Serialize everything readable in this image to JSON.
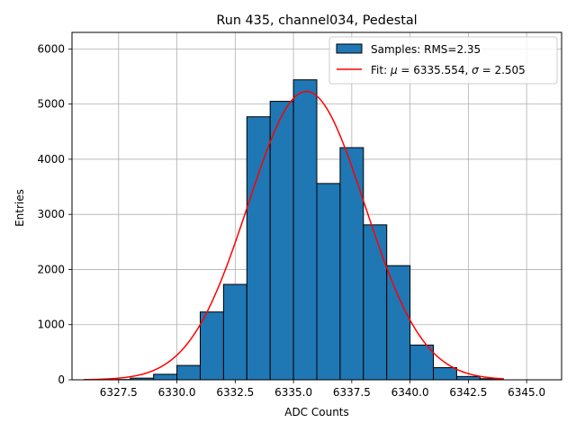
{
  "chart_data": {
    "type": "bar",
    "title": "Run 435, channel034, Pedestal",
    "xlabel": "ADC Counts",
    "ylabel": "Entries",
    "xlim": [
      6325.5,
      6346.5
    ],
    "ylim": [
      0,
      6300
    ],
    "grid": true,
    "xticks": [
      6327.5,
      6330.0,
      6332.5,
      6335.0,
      6337.5,
      6340.0,
      6342.5,
      6345.0
    ],
    "xtick_labels": [
      "6327.5",
      "6330.0",
      "6332.5",
      "6335.0",
      "6337.5",
      "6340.0",
      "6342.5",
      "6345.0"
    ],
    "yticks": [
      0,
      1000,
      2000,
      3000,
      4000,
      5000,
      6000
    ],
    "ytick_labels": [
      "0",
      "1000",
      "2000",
      "3000",
      "4000",
      "5000",
      "6000"
    ],
    "bar_color": "#1f77b4",
    "fit_color": "#ff0000",
    "bins": [
      {
        "start": 6327.0,
        "end": 6328.0,
        "value": 5
      },
      {
        "start": 6328.0,
        "end": 6329.0,
        "value": 30
      },
      {
        "start": 6329.0,
        "end": 6330.0,
        "value": 100
      },
      {
        "start": 6330.0,
        "end": 6331.0,
        "value": 260
      },
      {
        "start": 6331.0,
        "end": 6332.0,
        "value": 1230
      },
      {
        "start": 6332.0,
        "end": 6333.0,
        "value": 1730
      },
      {
        "start": 6333.0,
        "end": 6334.0,
        "value": 4770
      },
      {
        "start": 6334.0,
        "end": 6335.0,
        "value": 5050
      },
      {
        "start": 6335.0,
        "end": 6336.0,
        "value": 5440
      },
      {
        "start": 6336.0,
        "end": 6337.0,
        "value": 3560
      },
      {
        "start": 6337.0,
        "end": 6338.0,
        "value": 4210
      },
      {
        "start": 6338.0,
        "end": 6339.0,
        "value": 2810
      },
      {
        "start": 6339.0,
        "end": 6340.0,
        "value": 2070
      },
      {
        "start": 6340.0,
        "end": 6341.0,
        "value": 630
      },
      {
        "start": 6341.0,
        "end": 6342.0,
        "value": 220
      },
      {
        "start": 6342.0,
        "end": 6343.0,
        "value": 60
      },
      {
        "start": 6343.0,
        "end": 6344.0,
        "value": 20
      }
    ],
    "fit": {
      "mu": 6335.554,
      "sigma": 2.505,
      "amplitude": 5230,
      "x_range": [
        6326.0,
        6344.0
      ]
    },
    "legend": {
      "position": "top-right",
      "entries": [
        {
          "label": "Samples: RMS=2.35",
          "kind": "bar"
        },
        {
          "label_prefix": "Fit: ",
          "mu_symbol": "μ",
          "mu_text": " = 6335.554, ",
          "sigma_symbol": "σ",
          "sigma_text": " = 2.505",
          "kind": "line"
        }
      ]
    }
  }
}
